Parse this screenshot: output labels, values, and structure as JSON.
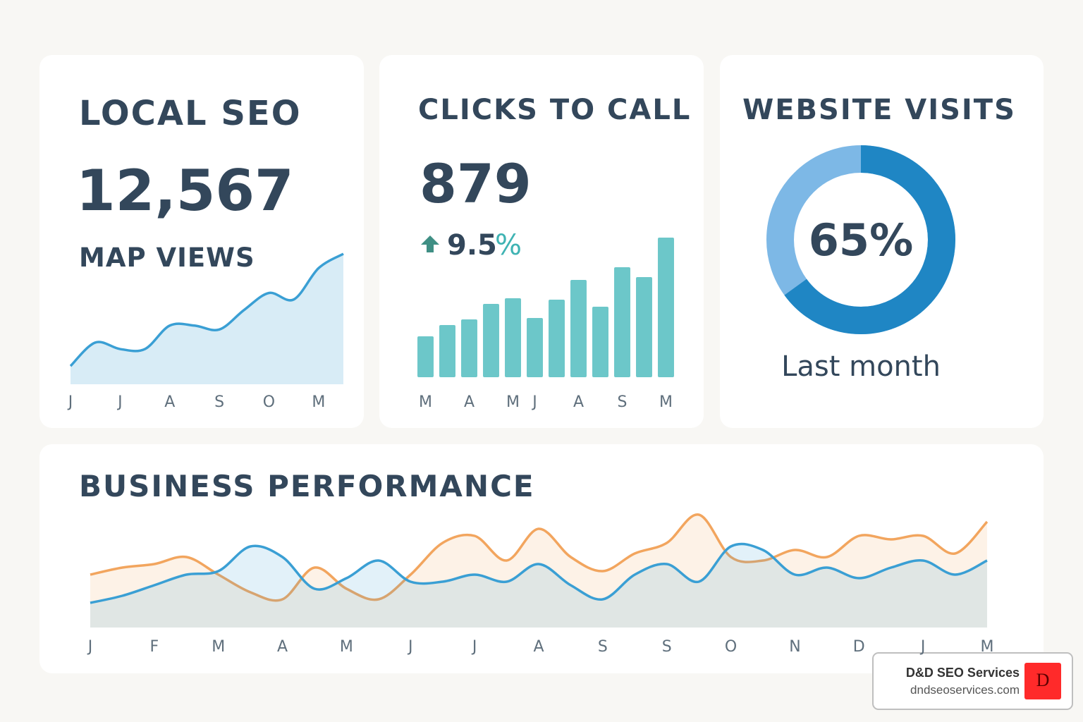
{
  "chart_data": [
    {
      "type": "area",
      "title": "LOCAL SEO",
      "kpi": "12,567",
      "kpi_label": "MAP VIEWS",
      "categories": [
        "J",
        null,
        "J",
        null,
        "A",
        null,
        "S",
        null,
        "O",
        null,
        "M",
        null
      ],
      "values": [
        14,
        32,
        27,
        27,
        45,
        45,
        42,
        57,
        70,
        65,
        89,
        100
      ],
      "color": "#3a9fd4",
      "ylim": [
        0,
        100
      ]
    },
    {
      "type": "bar",
      "title": "CLICKS TO CALL",
      "kpi": "879",
      "change": "9.5",
      "change_unit": "%",
      "categories": [
        "M",
        null,
        "A",
        null,
        "M",
        "J",
        null,
        "A",
        null,
        "S",
        null,
        "M"
      ],
      "values": [
        29,
        37,
        41,
        52,
        56,
        42,
        55,
        69,
        50,
        78,
        71,
        99
      ],
      "color": "#6cc7c9",
      "ylim": [
        0,
        100
      ]
    },
    {
      "type": "donut",
      "title": "WEBSITE VISITS",
      "values": [
        65
      ],
      "value_labels": [
        "65%"
      ],
      "colors": [
        "#1f86c4",
        "#7db8e6"
      ],
      "caption": "Last month"
    },
    {
      "type": "line",
      "title": "BUSINESS PERFORMANCE",
      "categories": [
        "J",
        null,
        "F",
        null,
        "M",
        null,
        "A",
        null,
        "M",
        null,
        "J",
        null,
        "J",
        null,
        "A",
        null,
        "S",
        null,
        "S",
        null,
        "O",
        null,
        "N",
        null,
        "D",
        null,
        "J",
        null,
        "M"
      ],
      "series": [
        {
          "color": "#f2a55e",
          "values": [
            75,
            85,
            90,
            100,
            75,
            50,
            40,
            85,
            55,
            40,
            75,
            120,
            130,
            95,
            140,
            100,
            80,
            105,
            120,
            160,
            100,
            95,
            110,
            100,
            130,
            125,
            130,
            105,
            150
          ]
        },
        {
          "color": "#3a9fd4",
          "values": [
            35,
            45,
            60,
            75,
            80,
            115,
            100,
            55,
            70,
            95,
            65,
            65,
            75,
            65,
            90,
            60,
            40,
            75,
            90,
            65,
            115,
            110,
            75,
            85,
            70,
            85,
            95,
            75,
            95
          ]
        }
      ],
      "ylim": [
        0,
        180
      ]
    }
  ],
  "badge": {
    "name": "D&D SEO Services",
    "url": "dndseoservices.com",
    "logo": "D"
  }
}
